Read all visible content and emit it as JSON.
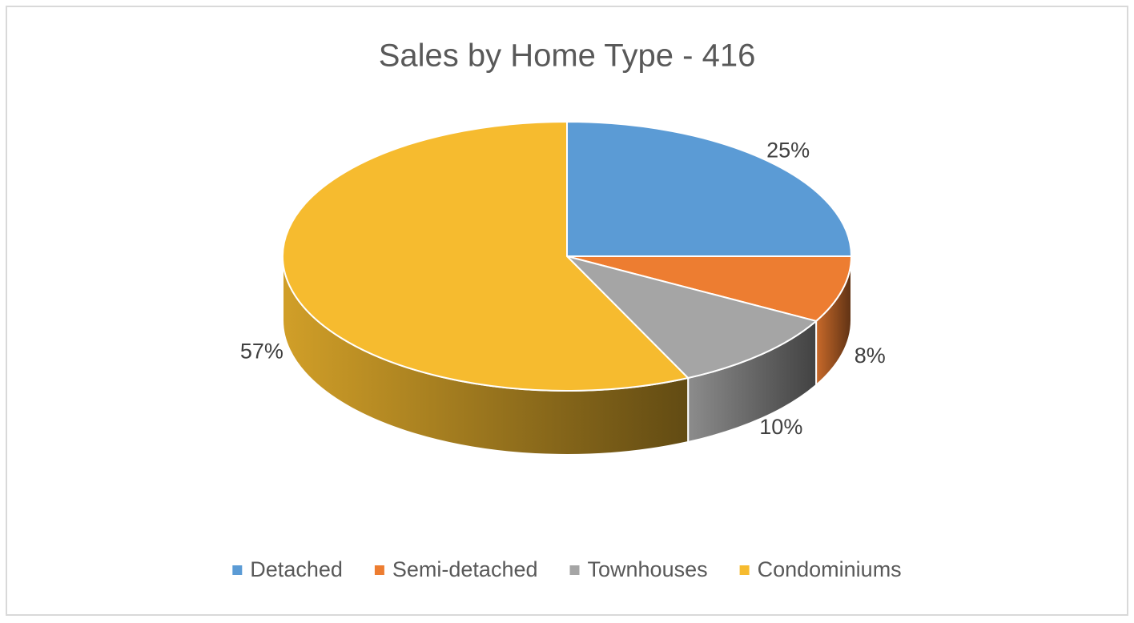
{
  "chart_data": {
    "type": "pie3d",
    "title": "Sales by Home Type - 416",
    "categories": [
      "Detached",
      "Semi-detached",
      "Townhouses",
      "Condominiums"
    ],
    "values": [
      25,
      8,
      10,
      57
    ],
    "value_labels": [
      "25%",
      "8%",
      "10%",
      "57%"
    ],
    "colors": [
      "#5b9bd5",
      "#ed7d31",
      "#a5a5a5",
      "#f6bb2f"
    ],
    "legend": "bottom"
  }
}
